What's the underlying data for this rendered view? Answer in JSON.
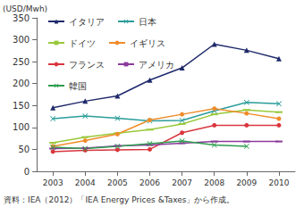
{
  "chart_data": {
    "type": "line",
    "y_label": "(USD/Mwh)",
    "note": "資料：IEA（2012）「IEA Energy Prices &Taxes」から作成。",
    "categories": [
      "2003",
      "2004",
      "2005",
      "2006",
      "2007",
      "2008",
      "2009",
      "2010"
    ],
    "ylim": [
      0,
      350
    ],
    "yticks": [
      0,
      50,
      100,
      150,
      200,
      250,
      300,
      350
    ],
    "grid": false,
    "legend": "upper left",
    "series": [
      {
        "name": "イタリア",
        "color": "#1f2a6b",
        "marker": "triangle",
        "values": [
          145,
          160,
          172,
          208,
          236,
          290,
          276,
          257
        ]
      },
      {
        "name": "日本",
        "color": "#2a9d9a",
        "marker": "cross",
        "values": [
          120,
          126,
          121,
          115,
          116,
          138,
          157,
          154
        ]
      },
      {
        "name": "ドイツ",
        "color": "#99c93a",
        "marker": "dash",
        "values": [
          65,
          78,
          87,
          95,
          108,
          130,
          140,
          135
        ]
      },
      {
        "name": "イギリス",
        "color": "#f08c2a",
        "marker": "circle",
        "values": [
          57,
          70,
          85,
          117,
          130,
          143,
          132,
          120
        ]
      },
      {
        "name": "フランス",
        "color": "#d9363e",
        "marker": "circle",
        "values": [
          45,
          48,
          49,
          50,
          88,
          105,
          105,
          105
        ]
      },
      {
        "name": "アメリカ",
        "color": "#8b3a9c",
        "marker": "dash",
        "values": [
          52,
          53,
          58,
          60,
          64,
          68,
          68,
          68
        ]
      },
      {
        "name": "韓国",
        "color": "#2e9e4f",
        "marker": "cross",
        "values": [
          55,
          52,
          57,
          63,
          69,
          60,
          57,
          null
        ]
      }
    ]
  }
}
